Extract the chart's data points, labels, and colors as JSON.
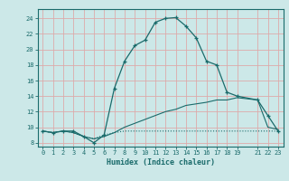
{
  "xlabel": "Humidex (Indice chaleur)",
  "bg_color": "#cce8e8",
  "grid_color": "#ddaaaa",
  "line_color": "#1a6b6b",
  "xlim": [
    -0.5,
    23.5
  ],
  "ylim": [
    7.5,
    25.2
  ],
  "xticks": [
    0,
    1,
    2,
    3,
    4,
    5,
    6,
    7,
    8,
    9,
    10,
    11,
    12,
    13,
    14,
    15,
    16,
    17,
    18,
    19,
    21,
    22,
    23
  ],
  "xtick_labels": [
    "0",
    "1",
    "2",
    "3",
    "4",
    "5",
    "6",
    "7",
    "8",
    "9",
    "10",
    "11",
    "12",
    "13",
    "14",
    "15",
    "16",
    "17",
    "18",
    "19",
    "21",
    "22",
    "23"
  ],
  "yticks": [
    8,
    10,
    12,
    14,
    16,
    18,
    20,
    22,
    24
  ],
  "line1_x": [
    0,
    1,
    2,
    3,
    4,
    5,
    6,
    7,
    8,
    9,
    10,
    11,
    12,
    13,
    14,
    15,
    16,
    17,
    18,
    19,
    21,
    22,
    23
  ],
  "line1_y": [
    9.5,
    9.3,
    9.5,
    9.5,
    8.8,
    8.0,
    9.0,
    15.0,
    18.5,
    20.5,
    21.2,
    23.5,
    24.0,
    24.1,
    23.0,
    21.5,
    18.5,
    18.0,
    14.5,
    14.0,
    13.5,
    11.5,
    9.5
  ],
  "line2_x": [
    0,
    1,
    2,
    3,
    4,
    5,
    6,
    7,
    8,
    9,
    10,
    11,
    12,
    13,
    14,
    15,
    16,
    17,
    18,
    19,
    21,
    22,
    23
  ],
  "line2_y": [
    9.5,
    9.3,
    9.5,
    9.3,
    8.8,
    8.5,
    8.8,
    9.3,
    10.0,
    10.5,
    11.0,
    11.5,
    12.0,
    12.3,
    12.8,
    13.0,
    13.2,
    13.5,
    13.5,
    13.8,
    13.5,
    10.0,
    9.7
  ],
  "line3_x": [
    0,
    1,
    2,
    3,
    4,
    5,
    6,
    7,
    8,
    9,
    10,
    11,
    12,
    13,
    14,
    15,
    16,
    17,
    18,
    19,
    21,
    22,
    23
  ],
  "line3_y": [
    9.5,
    9.3,
    9.5,
    9.3,
    8.8,
    8.5,
    9.0,
    9.3,
    9.5,
    9.5,
    9.5,
    9.5,
    9.5,
    9.5,
    9.5,
    9.5,
    9.5,
    9.5,
    9.5,
    9.5,
    9.5,
    9.5,
    9.5
  ]
}
